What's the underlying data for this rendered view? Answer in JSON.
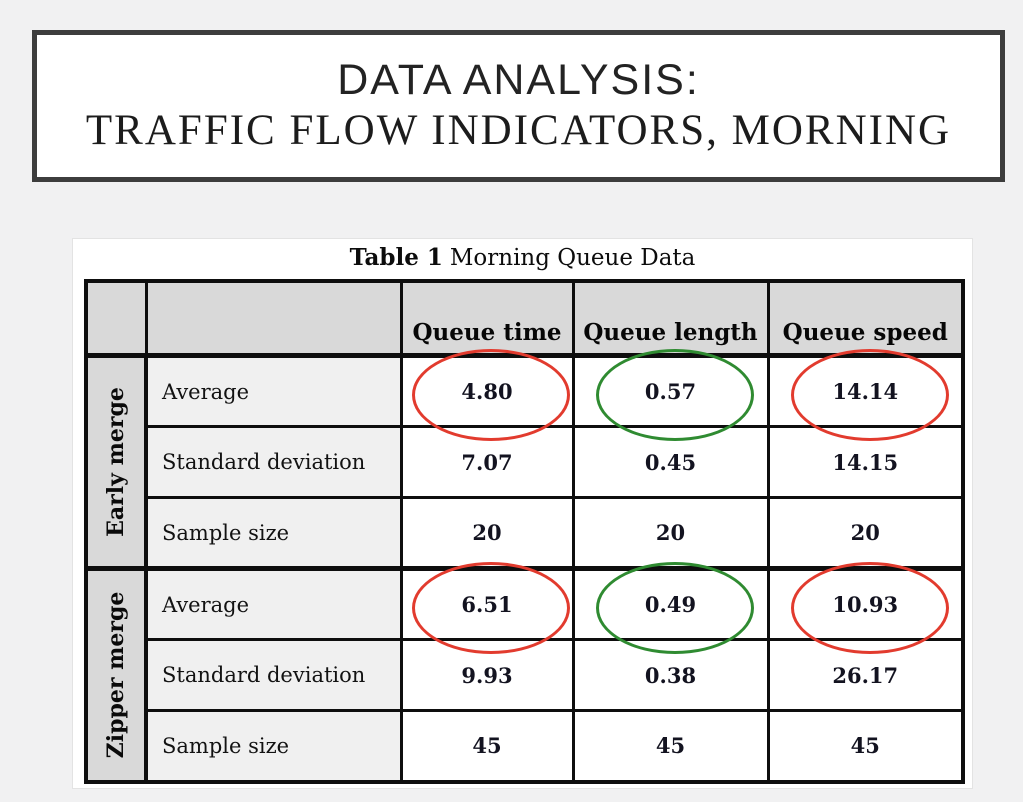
{
  "title_box": {
    "line1": "DATA ANALYSIS:",
    "line2": "TRAFFIC FLOW INDICATORS, MORNING"
  },
  "table": {
    "caption_bold": "Table 1",
    "caption_rest": "Morning Queue Data",
    "columns": [
      "Queue time",
      "Queue length",
      "Queue speed"
    ],
    "groups": [
      {
        "label": "Early merge",
        "rows": [
          {
            "label": "Average",
            "values": [
              "4.80",
              "0.57",
              "14.14"
            ]
          },
          {
            "label": "Standard deviation",
            "values": [
              "7.07",
              "0.45",
              "14.15"
            ]
          },
          {
            "label": "Sample size",
            "values": [
              "20",
              "20",
              "20"
            ]
          }
        ]
      },
      {
        "label": "Zipper merge",
        "rows": [
          {
            "label": "Average",
            "values": [
              "6.51",
              "0.49",
              "10.93"
            ]
          },
          {
            "label": "Standard deviation",
            "values": [
              "9.93",
              "0.38",
              "26.17"
            ]
          },
          {
            "label": "Sample size",
            "values": [
              "45",
              "45",
              "45"
            ]
          }
        ]
      }
    ],
    "annotations": [
      {
        "name": "red-ellipse-early-queue-time",
        "group": 0,
        "row": 0,
        "col": 0,
        "color": "#e23b2e"
      },
      {
        "name": "green-ellipse-early-queue-length",
        "group": 0,
        "row": 0,
        "col": 1,
        "color": "#2f8b31"
      },
      {
        "name": "red-ellipse-early-queue-speed",
        "group": 0,
        "row": 0,
        "col": 2,
        "color": "#e23b2e"
      },
      {
        "name": "red-ellipse-zipper-queue-time",
        "group": 1,
        "row": 0,
        "col": 0,
        "color": "#e23b2e"
      },
      {
        "name": "green-ellipse-zipper-queue-length",
        "group": 1,
        "row": 0,
        "col": 1,
        "color": "#2f8b31"
      },
      {
        "name": "red-ellipse-zipper-queue-speed",
        "group": 1,
        "row": 0,
        "col": 2,
        "color": "#e23b2e"
      }
    ],
    "colors": {
      "header_bg": "#d9d9d9",
      "row_label_bg": "#f0f0f0",
      "annotation_red": "#e23b2e",
      "annotation_green": "#2f8b31",
      "border": "#0e0e0e"
    }
  }
}
